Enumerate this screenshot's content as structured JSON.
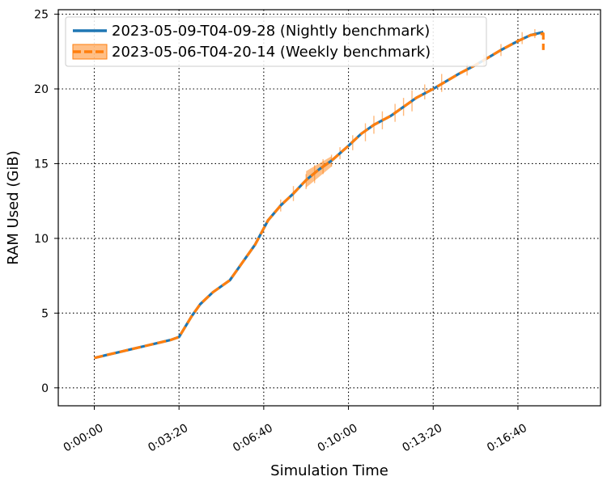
{
  "chart_data": {
    "type": "line",
    "xlabel": "Simulation Time",
    "ylabel": "RAM Used (GiB)",
    "x_unit": "seconds",
    "xlim": [
      -85,
      1195
    ],
    "ylim": [
      -1.2,
      25.3
    ],
    "x_ticks": [
      {
        "value": 0,
        "label": "0:00:00"
      },
      {
        "value": 200,
        "label": "0:03:20"
      },
      {
        "value": 400,
        "label": "0:06:40"
      },
      {
        "value": 600,
        "label": "0:10:00"
      },
      {
        "value": 800,
        "label": "0:13:20"
      },
      {
        "value": 1000,
        "label": "0:16:40"
      }
    ],
    "y_ticks": [
      {
        "value": 0,
        "label": "0"
      },
      {
        "value": 5,
        "label": "5"
      },
      {
        "value": 10,
        "label": "10"
      },
      {
        "value": 15,
        "label": "15"
      },
      {
        "value": 20,
        "label": "20"
      },
      {
        "value": 25,
        "label": "25"
      }
    ],
    "grid": true,
    "grid_style": "dotted",
    "legend_position": "top-left",
    "series": [
      {
        "name": "2023-05-09-T04-09-28 (Nightly benchmark)",
        "color": "#1f77b4",
        "style": "solid",
        "x": [
          0,
          30,
          60,
          90,
          120,
          150,
          180,
          200,
          230,
          250,
          280,
          320,
          350,
          380,
          410,
          440,
          470,
          500,
          530,
          560,
          600,
          630,
          660,
          700,
          730,
          760,
          800,
          830,
          860,
          900,
          930,
          960,
          1000,
          1030,
          1060
        ],
        "y": [
          2.0,
          2.2,
          2.4,
          2.6,
          2.8,
          3.0,
          3.2,
          3.4,
          4.8,
          5.6,
          6.4,
          7.2,
          8.4,
          9.6,
          11.2,
          12.2,
          13.0,
          13.9,
          14.6,
          15.2,
          16.2,
          17.0,
          17.6,
          18.2,
          18.8,
          19.4,
          20.0,
          20.5,
          21.0,
          21.6,
          22.1,
          22.6,
          23.2,
          23.6,
          23.8
        ]
      },
      {
        "name": "2023-05-06-T04-20-14 (Weekly benchmark)",
        "color": "#ff7f0e",
        "style": "dashed",
        "x": [
          0,
          30,
          60,
          90,
          120,
          150,
          180,
          200,
          230,
          250,
          280,
          320,
          350,
          380,
          410,
          440,
          470,
          500,
          530,
          560,
          600,
          630,
          660,
          700,
          730,
          760,
          800,
          830,
          860,
          900,
          930,
          960,
          1000,
          1030,
          1060,
          1060
        ],
        "y": [
          2.0,
          2.2,
          2.4,
          2.6,
          2.8,
          3.0,
          3.2,
          3.4,
          4.8,
          5.6,
          6.4,
          7.2,
          8.4,
          9.6,
          11.2,
          12.2,
          13.0,
          13.9,
          14.6,
          15.2,
          16.2,
          17.0,
          17.6,
          18.2,
          18.8,
          19.4,
          20.0,
          20.5,
          21.0,
          21.6,
          22.1,
          22.6,
          23.2,
          23.6,
          23.7,
          22.6
        ],
        "error_bars": [
          {
            "x": 440,
            "y": 12.2,
            "err": 0.4
          },
          {
            "x": 470,
            "y": 13.0,
            "err": 0.5
          },
          {
            "x": 500,
            "y": 13.8,
            "err": 0.5
          },
          {
            "x": 520,
            "y": 14.3,
            "err": 0.6
          },
          {
            "x": 540,
            "y": 14.8,
            "err": 0.5
          },
          {
            "x": 560,
            "y": 15.2,
            "err": 0.4
          },
          {
            "x": 580,
            "y": 15.7,
            "err": 0.4
          },
          {
            "x": 610,
            "y": 16.4,
            "err": 0.5
          },
          {
            "x": 640,
            "y": 17.1,
            "err": 0.6
          },
          {
            "x": 660,
            "y": 17.6,
            "err": 0.6
          },
          {
            "x": 680,
            "y": 17.9,
            "err": 0.6
          },
          {
            "x": 710,
            "y": 18.4,
            "err": 0.6
          },
          {
            "x": 730,
            "y": 18.8,
            "err": 0.6
          },
          {
            "x": 750,
            "y": 19.2,
            "err": 0.7
          },
          {
            "x": 780,
            "y": 19.8,
            "err": 0.5
          },
          {
            "x": 820,
            "y": 20.4,
            "err": 0.6
          },
          {
            "x": 880,
            "y": 21.3,
            "err": 0.4
          },
          {
            "x": 920,
            "y": 21.9,
            "err": 0.4
          },
          {
            "x": 960,
            "y": 22.6,
            "err": 0.4
          },
          {
            "x": 1010,
            "y": 23.4,
            "err": 0.4
          },
          {
            "x": 1040,
            "y": 23.7,
            "err": 0.3
          }
        ],
        "band": {
          "x": [
            500,
            530,
            560
          ],
          "low": [
            13.4,
            14.1,
            14.8
          ],
          "high": [
            14.5,
            15.0,
            15.5
          ]
        }
      }
    ]
  }
}
